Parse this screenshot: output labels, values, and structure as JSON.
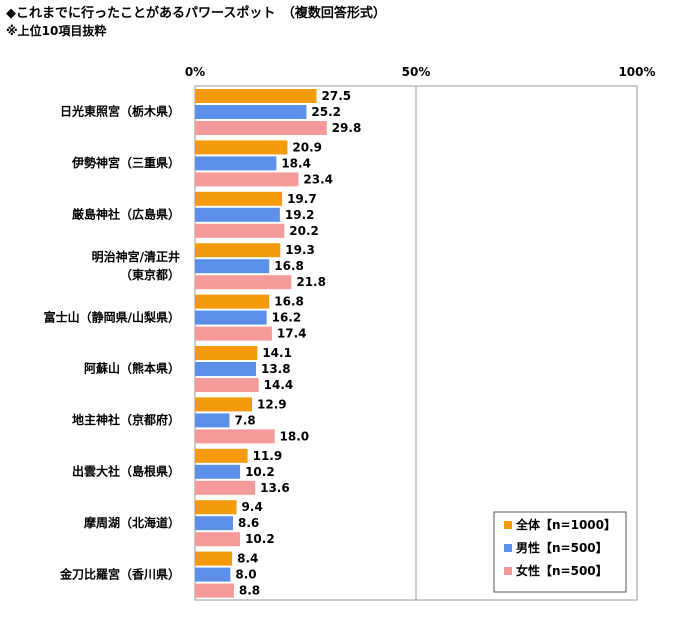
{
  "header": {
    "title": "◆これまでに行ったことがあるパワースポット　（複数回答形式）",
    "subtitle": "※上位10項目抜粋"
  },
  "colors": {
    "total": "#f59b0b",
    "male": "#5b8fe8",
    "female": "#f49a9a",
    "grid": "#9a9a9a"
  },
  "chart_data": {
    "type": "bar",
    "orientation": "horizontal",
    "title": "◆これまでに行ったことがあるパワースポット　（複数回答形式）",
    "subtitle": "※上位10項目抜粋",
    "xlim": [
      0,
      100
    ],
    "x_ticks": [
      "0%",
      "50%",
      "100%"
    ],
    "x_tick_values": [
      0,
      50,
      100
    ],
    "grid": true,
    "legend_position": "bottom-right",
    "categories": [
      [
        "日光東照宮（栃木県）"
      ],
      [
        "伊勢神宮（三重県）"
      ],
      [
        "厳島神社（広島県）"
      ],
      [
        "明治神宮/清正井",
        "（東京都）"
      ],
      [
        "富士山（静岡県/山梨県）"
      ],
      [
        "阿蘇山（熊本県）"
      ],
      [
        "地主神社（京都府）"
      ],
      [
        "出雲大社（島根県）"
      ],
      [
        "摩周湖（北海道）"
      ],
      [
        "金刀比羅宮（香川県）"
      ]
    ],
    "series": [
      {
        "name": "全体【n=1000】",
        "key": "total",
        "values": [
          27.5,
          20.9,
          19.7,
          19.3,
          16.8,
          14.1,
          12.9,
          11.9,
          9.4,
          8.4
        ],
        "labels": [
          "27.5",
          "20.9",
          "19.7",
          "19.3",
          "16.8",
          "14.1",
          "12.9",
          "11.9",
          "9.4",
          "8.4"
        ]
      },
      {
        "name": "男性【n=500】",
        "key": "male",
        "values": [
          25.2,
          18.4,
          19.2,
          16.8,
          16.2,
          13.8,
          7.8,
          10.2,
          8.6,
          8.0
        ],
        "labels": [
          "25.2",
          "18.4",
          "19.2",
          "16.8",
          "16.2",
          "13.8",
          "7.8",
          "10.2",
          "8.6",
          "8.0"
        ]
      },
      {
        "name": "女性【n=500】",
        "key": "female",
        "values": [
          29.8,
          23.4,
          20.2,
          21.8,
          17.4,
          14.4,
          18.0,
          13.6,
          10.2,
          8.8
        ],
        "labels": [
          "29.8",
          "23.4",
          "20.2",
          "21.8",
          "17.4",
          "14.4",
          "18.0",
          "13.6",
          "10.2",
          "8.8"
        ]
      }
    ]
  }
}
